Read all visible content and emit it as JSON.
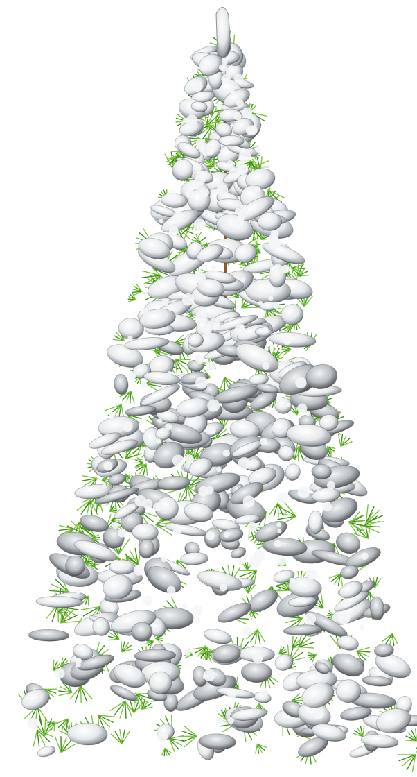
{
  "image": {
    "subject": "snow-covered-fir-tree",
    "background_color": "#ffffff",
    "colors": {
      "needle_green": "#7cc63a",
      "needle_dark": "#3f8f1e",
      "trunk": "#8a5a2b",
      "snow_light": "#f4f6f7",
      "snow_shadow": "#8c9196",
      "snow_dark": "#3a3d40"
    }
  }
}
